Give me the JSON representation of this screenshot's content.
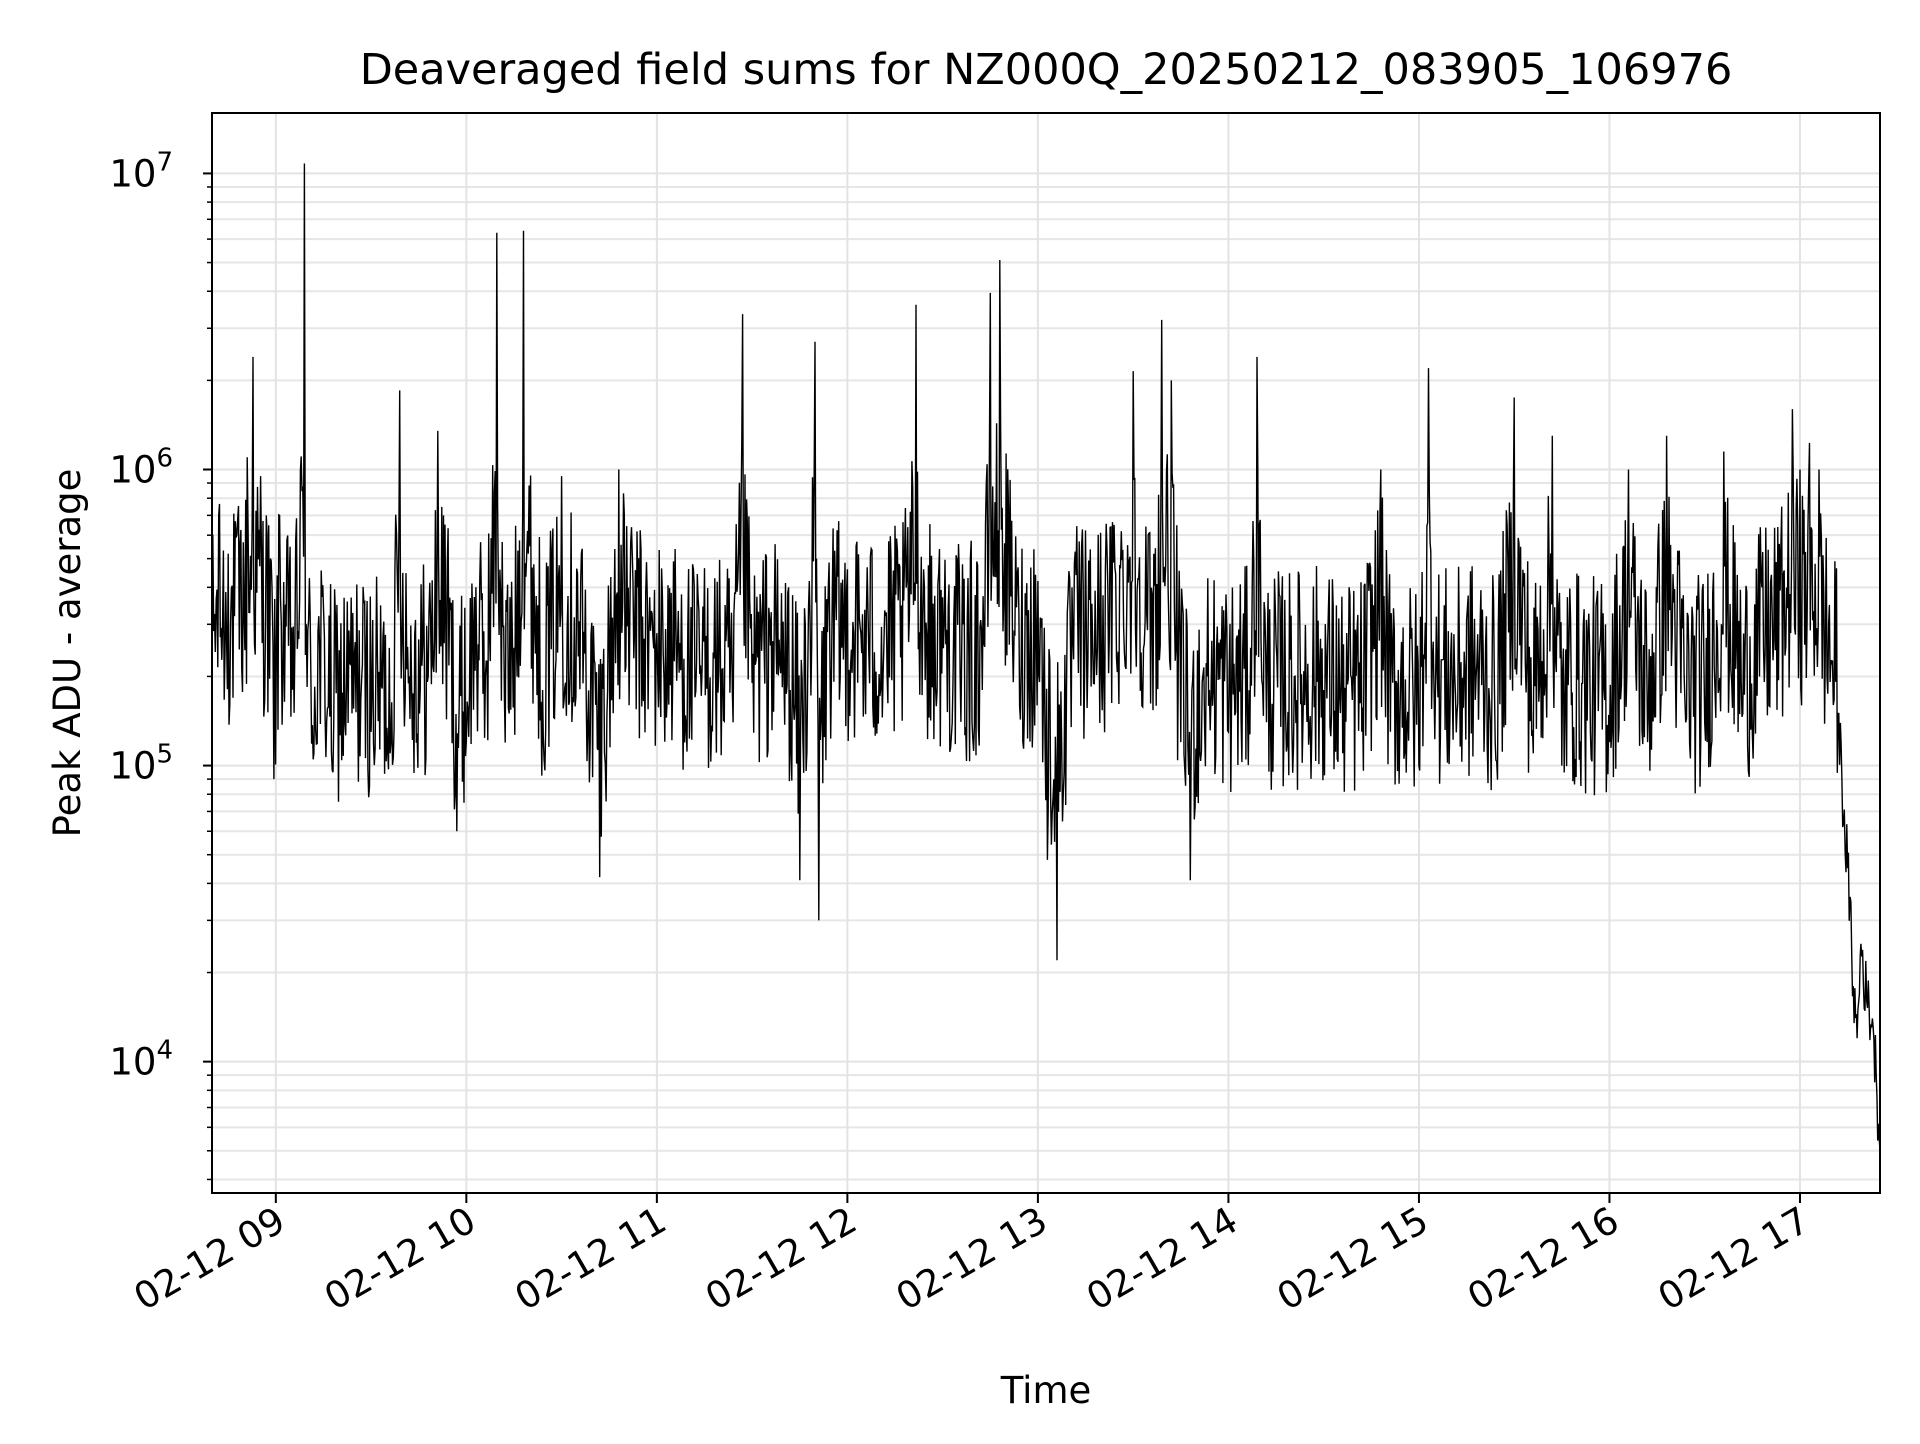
{
  "chart_data": {
    "type": "line",
    "title": "Deaveraged field sums for NZ000Q_20250212_083905_106976",
    "xlabel": "Time",
    "ylabel": "Peak ADU - average",
    "yscale": "log",
    "ylim": [
      3600,
      16000000
    ],
    "xlim_hours": [
      8.665,
      17.42
    ],
    "grid": true,
    "line_color": "#000000",
    "x_ticks": [
      {
        "label": "02-12 09",
        "hour": 9
      },
      {
        "label": "02-12 10",
        "hour": 10
      },
      {
        "label": "02-12 11",
        "hour": 11
      },
      {
        "label": "02-12 12",
        "hour": 12
      },
      {
        "label": "02-12 13",
        "hour": 13
      },
      {
        "label": "02-12 14",
        "hour": 14
      },
      {
        "label": "02-12 15",
        "hour": 15
      },
      {
        "label": "02-12 16",
        "hour": 16
      },
      {
        "label": "02-12 17",
        "hour": 17
      }
    ],
    "y_ticks": [
      {
        "base": "10",
        "exp": "4",
        "value": 10000
      },
      {
        "base": "10",
        "exp": "5",
        "value": 100000
      },
      {
        "base": "10",
        "exp": "6",
        "value": 1000000
      },
      {
        "base": "10",
        "exp": "7",
        "value": 10000000
      }
    ],
    "series": [
      {
        "hour": [
          8.665,
          8.7,
          8.75,
          8.8,
          8.85,
          8.88,
          8.92,
          8.95,
          8.98,
          8.99,
          9.02,
          9.05,
          9.1,
          9.15,
          9.16,
          9.2,
          9.23,
          9.3,
          9.4,
          9.5,
          9.6,
          9.65,
          9.7,
          9.8,
          9.85,
          9.88,
          9.9,
          9.95,
          10.0,
          10.05,
          10.1,
          10.16,
          10.2,
          10.25,
          10.3,
          10.4,
          10.5,
          10.6,
          10.65,
          10.7,
          10.8,
          10.9,
          11.0,
          11.1,
          11.2,
          11.3,
          11.4,
          11.45,
          11.5,
          11.6,
          11.7,
          11.75,
          11.8,
          11.83,
          11.85,
          11.9,
          12.0,
          12.1,
          12.2,
          12.3,
          12.36,
          12.4,
          12.5,
          12.6,
          12.7,
          12.75,
          12.8,
          12.9,
          13.0,
          13.05,
          13.1,
          13.2,
          13.3,
          13.4,
          13.5,
          13.6,
          13.65,
          13.7,
          13.75,
          13.8,
          13.85,
          13.9,
          14.0,
          14.1,
          14.15,
          14.2,
          14.3,
          14.4,
          14.5,
          14.6,
          14.7,
          14.8,
          14.85,
          14.9,
          15.0,
          15.05,
          15.1,
          15.2,
          15.3,
          15.4,
          15.5,
          15.6,
          15.7,
          15.75,
          15.8,
          15.9,
          16.0,
          16.1,
          16.2,
          16.3,
          16.4,
          16.5,
          16.6,
          16.7,
          16.8,
          16.9,
          16.96,
          17.0,
          17.05,
          17.1,
          17.15,
          17.2,
          17.22,
          17.25,
          17.28,
          17.3,
          17.32,
          17.35,
          17.38,
          17.4,
          17.42
        ],
        "y": [
          380000,
          700000,
          520000,
          680000,
          1100000,
          2400000,
          950000,
          700000,
          400000,
          90000,
          700000,
          350000,
          260000,
          10800000,
          300000,
          110000,
          250000,
          95000,
          150000,
          130000,
          110000,
          1850000,
          200000,
          200000,
          1350000,
          700000,
          480000,
          60000,
          120000,
          400000,
          200000,
          6300000,
          170000,
          250000,
          6400000,
          180000,
          950000,
          420000,
          120000,
          42000,
          1000000,
          400000,
          280000,
          300000,
          170000,
          230000,
          140000,
          3350000,
          190000,
          330000,
          180000,
          41000,
          420000,
          2700000,
          30000,
          400000,
          460000,
          330000,
          320000,
          490000,
          3600000,
          460000,
          370000,
          240000,
          310000,
          3950000,
          5100000,
          330000,
          420000,
          48000,
          22000,
          440000,
          390000,
          650000,
          2150000,
          380000,
          3200000,
          2000000,
          120000,
          41000,
          110000,
          180000,
          130000,
          160000,
          2400000,
          140000,
          150000,
          160000,
          180000,
          110000,
          130000,
          1000000,
          130000,
          140000,
          100000,
          2200000,
          170000,
          150000,
          200000,
          120000,
          1750000,
          110000,
          1300000,
          100000,
          160000,
          130000,
          120000,
          1000000,
          120000,
          1300000,
          140000,
          140000,
          1150000,
          150000,
          400000,
          550000,
          1600000,
          1000000,
          1230000,
          1000000,
          300000,
          150000,
          90000,
          45000,
          18000,
          12000,
          25000,
          16000,
          14000,
          9000,
          5000
        ]
      }
    ]
  }
}
